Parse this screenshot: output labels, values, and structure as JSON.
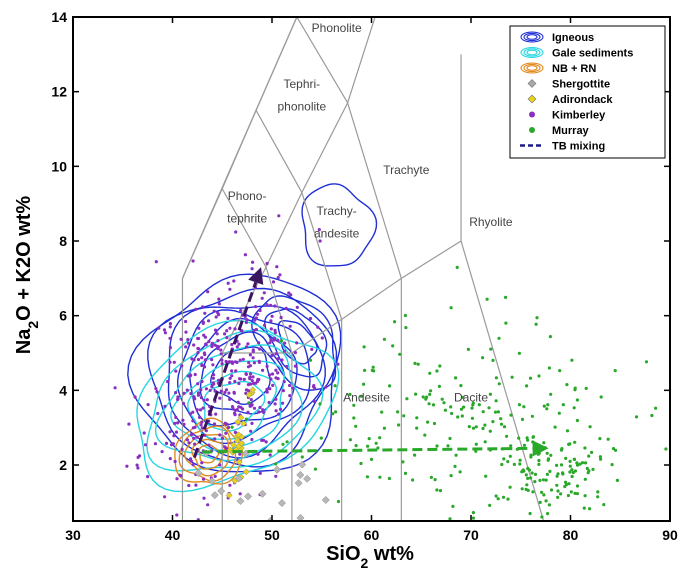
{
  "chart_data": {
    "type": "scatter",
    "title": "",
    "xlabel": "SiO2 wt%",
    "ylabel": "Na2O + K2O wt%",
    "xlim": [
      30,
      90
    ],
    "ylim": [
      0.5,
      14
    ],
    "x_ticks": [
      30,
      40,
      50,
      60,
      70,
      80,
      90
    ],
    "y_ticks": [
      2,
      4,
      6,
      8,
      10,
      12,
      14
    ],
    "x_tick_labels": [
      "30",
      "40",
      "50",
      "60",
      "70",
      "80",
      "90"
    ],
    "y_tick_labels": [
      "2",
      "4",
      "6",
      "8",
      "10",
      "12",
      "14"
    ],
    "grid": false,
    "legend_position": "top-right",
    "tas_field_labels": [
      {
        "text": "Phonolite",
        "x": 56.5,
        "y": 13.6
      },
      {
        "text": "Tephri-",
        "x": 53.0,
        "y": 12.1
      },
      {
        "text": "phonolite",
        "x": 53.0,
        "y": 11.5
      },
      {
        "text": "Trachyte",
        "x": 63.5,
        "y": 9.8
      },
      {
        "text": "Phono-",
        "x": 47.5,
        "y": 9.1
      },
      {
        "text": "tephrite",
        "x": 47.5,
        "y": 8.5
      },
      {
        "text": "Trachy-",
        "x": 56.5,
        "y": 8.7
      },
      {
        "text": "andesite",
        "x": 56.5,
        "y": 8.1
      },
      {
        "text": "Rhyolite",
        "x": 72.0,
        "y": 8.4
      },
      {
        "text": "Andesite",
        "x": 59.5,
        "y": 3.7
      },
      {
        "text": "Dacite",
        "x": 70.0,
        "y": 3.7
      }
    ],
    "tas_boundaries": [
      [
        [
          41,
          0.5
        ],
        [
          41,
          7
        ]
      ],
      [
        [
          41,
          7
        ],
        [
          52.5,
          14
        ]
      ],
      [
        [
          52.5,
          14
        ],
        [
          57.6,
          11.7
        ]
      ],
      [
        [
          57.6,
          11.7
        ],
        [
          63,
          16.2
        ]
      ],
      [
        [
          41,
          7
        ],
        [
          45,
          9.4
        ]
      ],
      [
        [
          45,
          9.4
        ],
        [
          49.4,
          7.3
        ]
      ],
      [
        [
          49.4,
          7.3
        ],
        [
          53,
          9.3
        ]
      ],
      [
        [
          53,
          9.3
        ],
        [
          57.6,
          11.7
        ]
      ],
      [
        [
          45,
          9.4
        ],
        [
          48.4,
          11.5
        ]
      ],
      [
        [
          48.4,
          11.5
        ],
        [
          53,
          9.3
        ]
      ],
      [
        [
          48.4,
          11.5
        ],
        [
          52.5,
          14
        ]
      ],
      [
        [
          45,
          0.5
        ],
        [
          45,
          5
        ]
      ],
      [
        [
          45,
          5
        ],
        [
          49.4,
          7.3
        ]
      ],
      [
        [
          52,
          0.5
        ],
        [
          52,
          5
        ]
      ],
      [
        [
          52,
          5
        ],
        [
          57,
          5.9
        ]
      ],
      [
        [
          45,
          5
        ],
        [
          52,
          5
        ]
      ],
      [
        [
          49.4,
          7.3
        ],
        [
          52,
          5
        ]
      ],
      [
        [
          57,
          0.5
        ],
        [
          57,
          5.9
        ]
      ],
      [
        [
          57,
          5.9
        ],
        [
          63,
          7
        ]
      ],
      [
        [
          53,
          9.3
        ],
        [
          57,
          5.9
        ]
      ],
      [
        [
          63,
          0.5
        ],
        [
          63,
          7
        ]
      ],
      [
        [
          63,
          7
        ],
        [
          69,
          8
        ]
      ],
      [
        [
          57.6,
          11.7
        ],
        [
          63,
          7
        ]
      ],
      [
        [
          69,
          8
        ],
        [
          69,
          13
        ]
      ],
      [
        [
          69,
          8
        ],
        [
          77.3,
          0.5
        ]
      ]
    ],
    "legend": [
      {
        "label": "Igneous",
        "marker": "contour",
        "color": "#1f2fd6"
      },
      {
        "label": "Gale sediments",
        "marker": "contour",
        "color": "#25d6e0"
      },
      {
        "label": "NB + RN",
        "marker": "contour",
        "color": "#e08a1e"
      },
      {
        "label": "Shergottite",
        "marker": "diamond",
        "color": "#a8a8a8"
      },
      {
        "label": "Adirondack",
        "marker": "diamond",
        "color": "#e8d21c"
      },
      {
        "label": "Kimberley",
        "marker": "dot",
        "color": "#8a2fc0"
      },
      {
        "label": "Murray",
        "marker": "dot",
        "color": "#2aa82a"
      },
      {
        "label": "TB mixing",
        "marker": "dashed-line",
        "color": "#1a1a8c"
      }
    ],
    "mixing_arrows": [
      {
        "series": "TB mixing",
        "from": [
          42.2,
          2.2
        ],
        "to": [
          48.9,
          7.3
        ],
        "color": "#3a1560"
      },
      {
        "series": "Murray",
        "from": [
          43,
          2.35
        ],
        "to": [
          77.8,
          2.45
        ],
        "color": "#2aa82a"
      }
    ],
    "contours": [
      {
        "series": "Igneous",
        "color": "#1f2fd6",
        "center": [
          47,
          4.4
        ],
        "rx": 10.5,
        "ry": 2.6,
        "rot": 28,
        "levels": [
          1,
          0.88,
          0.76,
          0.64,
          0.52,
          0.4,
          0.28
        ]
      },
      {
        "series": "Igneous",
        "color": "#1f2fd6",
        "center": [
          52.5,
          5.3
        ],
        "rx": 3.4,
        "ry": 1.4,
        "rot": 35,
        "levels": [
          1,
          0.72,
          0.45
        ]
      },
      {
        "series": "Igneous",
        "color": "#1f2fd6",
        "center": [
          56.5,
          8.4
        ],
        "rx": 3.6,
        "ry": 1.1,
        "rot": 10,
        "levels": [
          1
        ]
      },
      {
        "series": "Gale sediments",
        "color": "#25d6e0",
        "center": [
          46,
          3.6
        ],
        "rx": 10.5,
        "ry": 2.0,
        "rot": 25,
        "levels": [
          1,
          0.85,
          0.7,
          0.55,
          0.42,
          0.3
        ]
      },
      {
        "series": "NB + RN",
        "color": "#e08a1e",
        "center": [
          43.6,
          2.3
        ],
        "rx": 3.4,
        "ry": 0.85,
        "rot": 12,
        "levels": [
          1,
          0.82,
          0.64,
          0.46,
          0.28
        ]
      }
    ],
    "scatter_clouds": [
      {
        "series": "Kimberley",
        "color": "#8a2fc0",
        "n": 420,
        "cx": 45.5,
        "cy": 4.3,
        "sx": 4.0,
        "sy": 1.5,
        "rho": 0.35,
        "seed": 11,
        "size": 1.6
      },
      {
        "series": "Murray",
        "color": "#2aa82a",
        "n": 230,
        "cx": 69,
        "cy": 3.0,
        "sx": 8.5,
        "sy": 1.4,
        "rho": -0.1,
        "seed": 23,
        "size": 1.6
      },
      {
        "series": "Murray",
        "color": "#2aa82a",
        "n": 90,
        "cx": 79,
        "cy": 1.8,
        "sx": 2.5,
        "sy": 0.5,
        "rho": 0.0,
        "seed": 37,
        "size": 1.6
      },
      {
        "series": "Adirondack",
        "color": "#e8d21c",
        "n": 24,
        "cx": 47.0,
        "cy": 2.8,
        "sx": 0.6,
        "sy": 0.6,
        "rho": 0.5,
        "seed": 5,
        "size": 2.2
      },
      {
        "series": "Shergottite",
        "color": "#b8b8b8",
        "n": 22,
        "cx": 48.5,
        "cy": 1.2,
        "sx": 3.0,
        "sy": 0.6,
        "rho": 0.0,
        "seed": 7,
        "size": 2.6
      }
    ]
  }
}
